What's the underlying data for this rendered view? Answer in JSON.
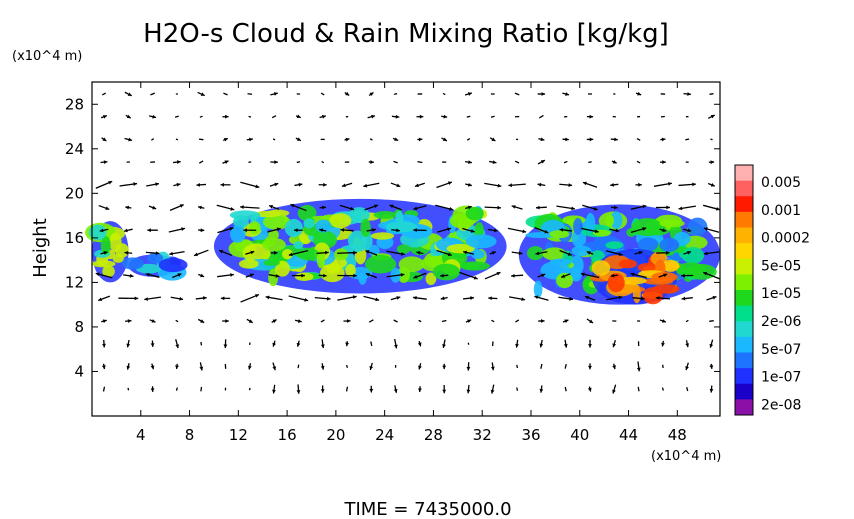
{
  "chart_data": {
    "type": "heatmap",
    "title": "H2O-s Cloud & Rain Mixing Ratio [kg/kg]",
    "ylabel": "Height",
    "y_unit": "(x10^4 m)",
    "x_unit": "(x10^4 m)",
    "x_ticks": [
      "4",
      "8",
      "12",
      "16",
      "20",
      "24",
      "28",
      "32",
      "36",
      "40",
      "44",
      "48"
    ],
    "y_ticks": [
      "4",
      "8",
      "12",
      "16",
      "20",
      "24",
      "28"
    ],
    "xlim": [
      0,
      51.5
    ],
    "ylim": [
      0,
      30
    ],
    "colorbar": {
      "labels": [
        "0.005",
        "0.001",
        "0.0002",
        "5e-05",
        "1e-05",
        "2e-06",
        "5e-07",
        "1e-07",
        "2e-08"
      ],
      "colors": [
        "#ffb0b0",
        "#ff6060",
        "#ff1a00",
        "#ff7a00",
        "#ffb300",
        "#ffd600",
        "#c8f000",
        "#7cf000",
        "#1ed81e",
        "#00e08a",
        "#20d8d0",
        "#1ab8ff",
        "#1f74ff",
        "#2030ff",
        "#1a00c8",
        "#8a10a8"
      ]
    },
    "cloud_regions": [
      {
        "x": [
          0,
          3
        ],
        "y": [
          12,
          17.5
        ],
        "level": "5e-05"
      },
      {
        "x": [
          3,
          7
        ],
        "y": [
          12.5,
          14.5
        ],
        "level": "1e-07"
      },
      {
        "x": [
          10,
          34
        ],
        "y": [
          11,
          19.5
        ],
        "level": "5e-05"
      },
      {
        "x": [
          35,
          51.5
        ],
        "y": [
          10,
          19
        ],
        "level": "1e-05"
      },
      {
        "x": [
          41,
          48
        ],
        "y": [
          10,
          15
        ],
        "level": "0.001"
      }
    ],
    "time_label": "TIME  =  7435000.0"
  }
}
